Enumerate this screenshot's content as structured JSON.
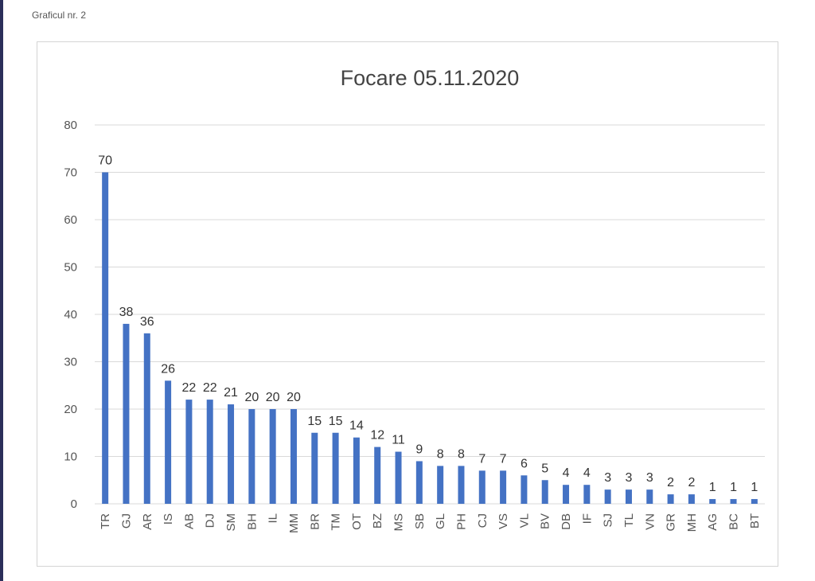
{
  "page": {
    "caption": "Graficul nr. 2"
  },
  "colors": {
    "bar": "#4472c4",
    "grid": "#d9d9d9",
    "frame_border": "#d4d4d4",
    "left_rule": "#2b2f5a"
  },
  "chart_data": {
    "type": "bar",
    "title": "Focare 05.11.2020",
    "xlabel": "",
    "ylabel": "",
    "ylim": [
      0,
      80
    ],
    "yticks": [
      0,
      10,
      20,
      30,
      40,
      50,
      60,
      70,
      80
    ],
    "grid": true,
    "legend": "none",
    "data_labels": true,
    "categories": [
      "TR",
      "GJ",
      "AR",
      "IS",
      "AB",
      "DJ",
      "SM",
      "BH",
      "IL",
      "MM",
      "BR",
      "TM",
      "OT",
      "BZ",
      "MS",
      "SB",
      "GL",
      "PH",
      "CJ",
      "VS",
      "VL",
      "BV",
      "DB",
      "IF",
      "SJ",
      "TL",
      "VN",
      "GR",
      "MH",
      "AG",
      "BC",
      "BT"
    ],
    "values": [
      70,
      38,
      36,
      26,
      22,
      22,
      21,
      20,
      20,
      20,
      15,
      15,
      14,
      12,
      11,
      9,
      8,
      8,
      7,
      7,
      6,
      5,
      4,
      4,
      3,
      3,
      3,
      2,
      2,
      1,
      1,
      1
    ]
  }
}
